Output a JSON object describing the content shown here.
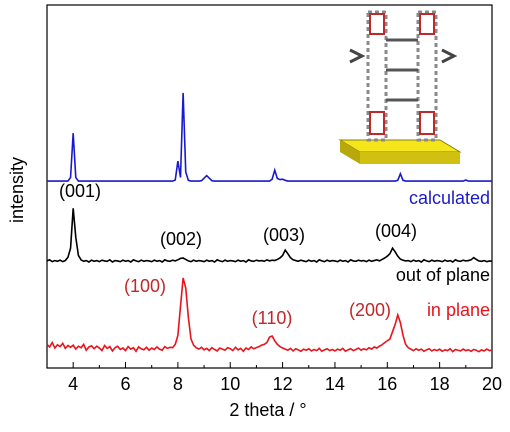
{
  "chart_data": {
    "type": "line",
    "x_label": "2 theta / °",
    "y_label": "intensity",
    "xlim": [
      3,
      20
    ],
    "xticks": [
      4,
      6,
      8,
      10,
      12,
      14,
      16,
      18,
      20
    ],
    "ylim": [
      0,
      100
    ],
    "x": [
      3,
      3.1,
      3.2,
      3.3,
      3.4,
      3.5,
      3.6,
      3.7,
      3.8,
      3.9,
      4,
      4.1,
      4.2,
      4.3,
      4.4,
      4.5,
      4.6,
      4.7,
      4.8,
      4.9,
      5,
      5.1,
      5.2,
      5.3,
      5.4,
      5.5,
      5.6,
      5.7,
      5.8,
      5.9,
      6,
      6.1,
      6.2,
      6.3,
      6.4,
      6.5,
      6.6,
      6.7,
      6.8,
      6.9,
      7,
      7.1,
      7.2,
      7.3,
      7.4,
      7.5,
      7.6,
      7.7,
      7.8,
      7.9,
      8,
      8.1,
      8.2,
      8.3,
      8.4,
      8.5,
      8.6,
      8.7,
      8.8,
      8.9,
      9,
      9.1,
      9.2,
      9.3,
      9.4,
      9.5,
      9.6,
      9.7,
      9.8,
      9.9,
      10,
      10.1,
      10.2,
      10.3,
      10.4,
      10.5,
      10.6,
      10.7,
      10.8,
      10.9,
      11,
      11.1,
      11.2,
      11.3,
      11.4,
      11.5,
      11.6,
      11.7,
      11.8,
      11.9,
      12,
      12.1,
      12.2,
      12.3,
      12.4,
      12.5,
      12.6,
      12.7,
      12.8,
      12.9,
      13,
      13.1,
      13.2,
      13.3,
      13.4,
      13.5,
      13.6,
      13.7,
      13.8,
      13.9,
      14,
      14.1,
      14.2,
      14.3,
      14.4,
      14.5,
      14.6,
      14.7,
      14.8,
      14.9,
      15,
      15.1,
      15.2,
      15.3,
      15.4,
      15.5,
      15.6,
      15.7,
      15.8,
      15.9,
      16,
      16.1,
      16.2,
      16.3,
      16.4,
      16.5,
      16.6,
      16.7,
      16.8,
      16.9,
      17,
      17.1,
      17.2,
      17.3,
      17.4,
      17.5,
      17.6,
      17.7,
      17.8,
      17.9,
      18,
      18.1,
      18.2,
      18.3,
      18.4,
      18.5,
      18.6,
      18.7,
      18.8,
      18.9,
      19,
      19.1,
      19.2,
      19.3,
      19.4,
      19.5,
      19.6,
      19.7,
      19.8,
      19.9,
      20
    ],
    "series": [
      {
        "name": "calculated",
        "color": "#1a1acc",
        "values": [
          51.5,
          51.5,
          51.5,
          51.5,
          51.5,
          51.5,
          51.5,
          51.5,
          51.5,
          52.5,
          64.7,
          52.5,
          51.5,
          51.5,
          51.5,
          51.5,
          51.5,
          51.5,
          51.5,
          51.5,
          51.5,
          51.5,
          51.5,
          51.5,
          51.5,
          51.5,
          51.5,
          51.5,
          51.5,
          51.5,
          51.5,
          51.5,
          51.5,
          51.5,
          51.5,
          51.5,
          51.5,
          51.5,
          51.5,
          51.5,
          51.5,
          51.5,
          51.5,
          51.5,
          51.5,
          51.5,
          51.5,
          51.5,
          51.5,
          51.8,
          57,
          52.5,
          75.8,
          54,
          51.7,
          51.5,
          51.5,
          51.5,
          51.5,
          51.6,
          52.3,
          53,
          52.3,
          51.6,
          51.5,
          51.5,
          51.5,
          51.5,
          51.5,
          51.5,
          51.5,
          51.5,
          51.5,
          51.5,
          51.5,
          51.5,
          51.5,
          51.5,
          51.5,
          51.5,
          51.5,
          51.5,
          51.5,
          51.5,
          51.5,
          51.5,
          52,
          54.5,
          52.2,
          51.9,
          52,
          51.7,
          51.5,
          51.5,
          51.5,
          51.5,
          51.5,
          51.5,
          51.5,
          51.5,
          51.5,
          51.5,
          51.5,
          51.5,
          51.5,
          51.5,
          51.5,
          51.5,
          51.5,
          51.5,
          51.5,
          51.5,
          51.5,
          51.5,
          51.5,
          51.5,
          51.5,
          51.5,
          51.5,
          51.5,
          51.5,
          51.5,
          51.5,
          51.5,
          51.5,
          51.5,
          51.5,
          51.5,
          51.5,
          51.5,
          51.5,
          51.5,
          51.5,
          51.5,
          51.7,
          53.5,
          51.7,
          51.5,
          51.5,
          51.5,
          51.5,
          51.5,
          51.5,
          51.5,
          51.5,
          51.5,
          51.5,
          51.5,
          51.5,
          51.5,
          51.5,
          51.5,
          51.5,
          51.5,
          51.5,
          51.5,
          51.5,
          51.5,
          51.5,
          51.5,
          51.8,
          51.5,
          51.5,
          51.5,
          51.5,
          51.5,
          51.5,
          51.5,
          51.5,
          51.5,
          51.5
        ]
      },
      {
        "name": "out of plane",
        "color": "#000000",
        "values": [
          29.5,
          29.8,
          29.3,
          29.6,
          29.4,
          29.7,
          29.3,
          29.6,
          30.5,
          33,
          44,
          36,
          31,
          29.8,
          29.4,
          29.6,
          29.2,
          29.7,
          29.4,
          29.6,
          29.3,
          29.7,
          29.5,
          29.4,
          29.8,
          29.2,
          29.6,
          29.5,
          29.3,
          29.7,
          29.4,
          29.6,
          29.2,
          29.8,
          29.5,
          29.3,
          29.7,
          29.4,
          29.6,
          29.5,
          29.3,
          29.7,
          29.4,
          29.6,
          29.2,
          29.8,
          29.5,
          29.4,
          29.7,
          29.5,
          29.8,
          30.2,
          30.3,
          29.9,
          29.5,
          29.3,
          29.7,
          29.4,
          29.6,
          29.5,
          29.3,
          29.7,
          29.4,
          29.6,
          29.2,
          29.8,
          29.5,
          29.3,
          29.7,
          29.4,
          29.6,
          29.5,
          29.3,
          29.7,
          29.4,
          29.6,
          29.2,
          29.8,
          29.5,
          29.4,
          29.7,
          29.5,
          29.6,
          29.4,
          29.8,
          29.5,
          29.7,
          29.6,
          29.9,
          30.3,
          31,
          32.5,
          31.5,
          30.4,
          29.8,
          29.6,
          29.4,
          29.7,
          29.5,
          29.3,
          29.7,
          29.4,
          29.6,
          29.2,
          29.8,
          29.5,
          29.3,
          29.7,
          29.4,
          29.6,
          29.5,
          29.3,
          29.7,
          29.4,
          29.6,
          29.2,
          29.8,
          29.5,
          29.4,
          29.7,
          29.5,
          29.6,
          29.3,
          29.7,
          29.4,
          29.6,
          29.8,
          29.5,
          29.9,
          30.3,
          30.8,
          31.5,
          33,
          32,
          30.8,
          30,
          29.7,
          29.5,
          29.6,
          29.3,
          29.7,
          29.4,
          29.6,
          29.2,
          29.8,
          29.5,
          29.3,
          29.7,
          29.4,
          29.6,
          29.5,
          29.3,
          29.7,
          29.4,
          29.6,
          29.2,
          29.8,
          29.5,
          29.4,
          29.7,
          29.5,
          29.6,
          29.8,
          30.4,
          29.9,
          29.5,
          29.4,
          29.6,
          29.3,
          29.5,
          29.4
        ]
      },
      {
        "name": "in plane",
        "color": "#e8141c",
        "values": [
          6.5,
          5.8,
          7,
          5.5,
          6.4,
          5.9,
          6.8,
          5.4,
          6.2,
          5.7,
          6.3,
          5.2,
          6,
          5.6,
          6.5,
          4.9,
          5.8,
          6.1,
          5.3,
          6,
          5.5,
          4.8,
          6.2,
          5.4,
          5.9,
          4.7,
          5.6,
          6,
          5.1,
          5.5,
          4.8,
          5.9,
          5.2,
          5.6,
          4.6,
          5.8,
          5.3,
          5,
          5.7,
          4.9,
          5.5,
          5.1,
          5.8,
          5.2,
          4.9,
          5.9,
          5.4,
          5.7,
          5.6,
          6.5,
          9,
          17,
          24.8,
          22,
          14,
          8,
          6.3,
          5.6,
          5.2,
          5.7,
          5,
          5.4,
          4.8,
          5.6,
          5.1,
          4.7,
          5.5,
          5.2,
          4.9,
          5.6,
          5.3,
          4.8,
          5.7,
          5,
          5.4,
          4.6,
          5.5,
          5.1,
          5.8,
          5.3,
          5.6,
          5.9,
          6.3,
          6.5,
          7,
          8.5,
          8.8,
          7.5,
          6.5,
          5.9,
          5.5,
          5.2,
          4.9,
          5.4,
          4.7,
          5.3,
          5,
          4.6,
          5.2,
          4.9,
          5.3,
          4.7,
          5.1,
          4.8,
          5.4,
          4.6,
          5,
          5.3,
          4.8,
          5.1,
          4.7,
          5.2,
          4.9,
          5.4,
          4.6,
          5,
          5.3,
          4.8,
          5.1,
          5.5,
          4.9,
          5.3,
          5,
          5.6,
          5.2,
          5.8,
          5.5,
          6,
          6.4,
          7,
          7.5,
          8,
          10,
          12,
          14.6,
          12.5,
          9,
          6.5,
          5.6,
          5.2,
          4.8,
          5.3,
          4.9,
          5.2,
          4.6,
          5,
          5.3,
          4.7,
          5.1,
          4.8,
          5.2,
          4.6,
          5,
          4.8,
          5.3,
          4.5,
          5.1,
          4.9,
          4.7,
          5.2,
          4.8,
          5,
          4.6,
          5.1,
          4.9,
          4.5,
          5,
          4.7,
          5.2,
          4.8,
          4.9
        ]
      }
    ],
    "annotations": [
      {
        "text": "(001)",
        "color": "#000000"
      },
      {
        "text": "(002)",
        "color": "#000000"
      },
      {
        "text": "(003)",
        "color": "#000000"
      },
      {
        "text": "(004)",
        "color": "#000000"
      },
      {
        "text": "(100)",
        "color": "#c0282a"
      },
      {
        "text": "(110)",
        "color": "#c0282a"
      },
      {
        "text": "(200)",
        "color": "#c0282a"
      }
    ]
  }
}
